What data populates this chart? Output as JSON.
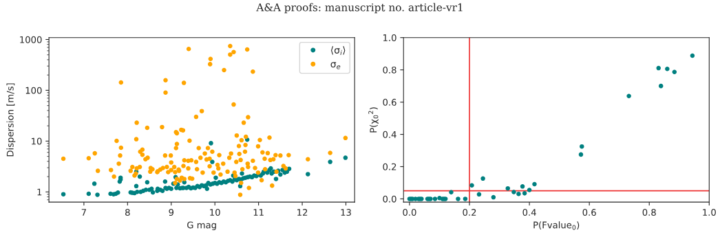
{
  "chart_data": [
    {
      "type": "scatter",
      "annotations": [
        "A&A proofs: manuscript no. article-vr1"
      ],
      "xlabel": "G mag",
      "ylabel": "Dispersion [m/s]",
      "log": "y",
      "xlim": [
        6.2,
        13.2
      ],
      "ylim": [
        0.63,
        1090
      ],
      "xticks": [
        7,
        8,
        9,
        10,
        11,
        12,
        13
      ],
      "yticks": [
        {
          "value": 1,
          "label": "1"
        },
        {
          "value": 10,
          "label": "10"
        },
        {
          "value": 100,
          "label": "100"
        },
        {
          "value": 1000,
          "label": "1000"
        }
      ],
      "grid": false,
      "legend": "top right",
      "marker": "circle",
      "series": [
        {
          "name": "⟨σ$_{i}$⟩",
          "color": "#008080",
          "x": [
            6.53,
            7.11,
            7.24,
            7.31,
            7.61,
            7.68,
            7.73,
            7.78,
            7.82,
            7.84,
            7.84,
            8.07,
            8.11,
            8.16,
            8.2,
            8.2,
            8.22,
            8.28,
            8.3,
            8.36,
            8.42,
            8.45,
            8.5,
            8.55,
            8.58,
            8.68,
            8.69,
            8.75,
            8.8,
            8.86,
            8.87,
            8.9,
            8.95,
            9.0,
            9.05,
            9.1,
            9.12,
            9.15,
            9.2,
            9.25,
            9.28,
            9.3,
            10.74,
            9.91,
            9.94,
            12.99,
            12.64,
            12.13,
            9.35,
            9.4,
            9.45,
            9.5,
            9.55,
            9.6,
            9.65,
            9.7,
            9.75,
            9.8,
            9.85,
            9.9,
            9.95,
            10.0,
            10.05,
            10.1,
            10.15,
            10.2,
            10.25,
            10.3,
            10.35,
            10.4,
            10.45,
            10.5,
            10.55,
            10.6,
            10.62,
            10.65,
            10.7,
            10.75,
            10.8,
            10.85,
            10.9,
            10.95,
            11.0,
            11.05,
            11.1,
            11.2,
            11.25,
            11.3,
            11.35,
            11.4,
            11.45,
            11.5,
            11.55,
            11.6,
            11.65,
            11.7,
            9.82,
            10.02,
            10.42,
            10.58,
            11.28,
            11.12
          ],
          "values": [
            0.9,
            0.92,
            1.45,
            0.88,
            0.92,
            0.9,
            0.92,
            0.97,
            1.6,
            1.9,
            1.75,
            0.98,
            0.96,
            0.95,
            1.3,
            2.5,
            1.0,
            2.0,
            1.0,
            1.05,
            1.1,
            1.55,
            1.1,
            1.15,
            0.98,
            1.05,
            1.15,
            1.1,
            1.05,
            1.6,
            1.2,
            1.15,
            1.2,
            1.15,
            1.45,
            1.95,
            1.2,
            1.4,
            1.18,
            1.2,
            1.2,
            1.55,
            10.7,
            9.1,
            3.9,
            4.7,
            3.9,
            2.24,
            1.2,
            1.25,
            1.18,
            1.22,
            1.2,
            1.3,
            1.25,
            1.35,
            1.3,
            1.35,
            1.5,
            1.4,
            1.45,
            1.5,
            1.45,
            1.55,
            1.5,
            1.6,
            1.55,
            1.65,
            1.7,
            1.6,
            1.75,
            1.7,
            1.8,
            1.75,
            2.3,
            1.85,
            1.9,
            1.95,
            2.0,
            1.95,
            2.1,
            2.05,
            2.2,
            2.1,
            2.3,
            2.4,
            2.7,
            2.3,
            2.5,
            1.8,
            2.6,
            2.2,
            2.7,
            2.4,
            2.5,
            2.85,
            1.15,
            1.9,
            2.1,
            1.3,
            2.9,
            2.5
          ]
        },
        {
          "name": "σ$_{e}$",
          "color": "#ffa500",
          "x": [
            6.53,
            7.11,
            7.25,
            7.32,
            7.62,
            7.69,
            7.75,
            7.8,
            7.83,
            7.85,
            7.85,
            8.07,
            8.11,
            8.16,
            8.19,
            8.2,
            8.21,
            8.21,
            8.28,
            8.29,
            8.34,
            8.34,
            8.41,
            8.46,
            8.45,
            8.52,
            8.53,
            8.57,
            8.68,
            8.69,
            8.75,
            8.79,
            8.81,
            8.86,
            8.87,
            8.87,
            8.9,
            8.93,
            8.99,
            9.0,
            9.0,
            9.07,
            9.09,
            9.11,
            9.13,
            9.13,
            9.11,
            9.13,
            9.09,
            9.17,
            9.18,
            9.2,
            9.23,
            9.27,
            9.29,
            9.28,
            9.3,
            9.24,
            9.3,
            9.4,
            9.9,
            9.89,
            10.35,
            10.43,
            10.35,
            10.74,
            10.21,
            10.87,
            9.7,
            9.57,
            10.43,
            10.76,
            10.66,
            10.5,
            10.71,
            10.61,
            11.03,
            11.25,
            9.42,
            12.99,
            10.7,
            10.55,
            10.99,
            9.63,
            9.84,
            9.94,
            10.37,
            10.1,
            10.56,
            10.69,
            11.09,
            11.21,
            11.39,
            11.5,
            11.69,
            12.64,
            12.13,
            9.77,
            9.67,
            9.39,
            9.46,
            9.57,
            9.81,
            9.88,
            10.06,
            10.19,
            10.33,
            10.49,
            10.59,
            10.75,
            10.87,
            11.14,
            11.34,
            11.27,
            11.57,
            11.62,
            9.39,
            9.59,
            9.88,
            10.08,
            10.29,
            10.45,
            10.63,
            10.76,
            10.92,
            11.15,
            11.41,
            9.72,
            9.97,
            9.43,
            9.48,
            10.6,
            11.07,
            11.31,
            10.78,
            10.58,
            10.13,
            10.47,
            10.99
          ],
          "values": [
            4.5,
            4.6,
            5.75,
            2.6,
            2.7,
            2.0,
            10.1,
            3.6,
            5.2,
            7.4,
            143,
            2.6,
            3.1,
            2.1,
            2.3,
            10.9,
            23,
            2.9,
            3.1,
            6.2,
            5.4,
            6.8,
            4.4,
            4.7,
            18.3,
            2.5,
            2.95,
            2.8,
            2.45,
            2.55,
            2.75,
            18.9,
            2.95,
            5.2,
            158,
            90,
            3.1,
            2.45,
            5.2,
            3.8,
            2.7,
            3.1,
            2.45,
            15,
            14.3,
            8.8,
            7.3,
            1.8,
            1.5,
            2.75,
            2.6,
            1.68,
            16.7,
            16.3,
            140,
            3.25,
            4.2,
            1.9,
            1.8,
            650,
            415,
            327,
            745,
            565,
            505,
            635,
            250,
            233,
            39,
            30,
            52.5,
            29.5,
            23,
            12.9,
            12.2,
            10.4,
            10.5,
            11.7,
            10.2,
            11.5,
            8.4,
            8.0,
            7.9,
            7.3,
            7.3,
            6.2,
            5.7,
            5.3,
            5.6,
            6.2,
            6.0,
            5.8,
            5.3,
            5.2,
            5.3,
            5.85,
            4.4,
            5.7,
            4.7,
            4.1,
            4.2,
            3.9,
            4.35,
            4.5,
            3.4,
            3.6,
            4.7,
            3.9,
            4.25,
            3.6,
            4.1,
            4.5,
            4.4,
            4.25,
            3.25,
            2.9,
            2.9,
            2.8,
            3.2,
            2.9,
            2.5,
            2.4,
            2.8,
            3.1,
            2.95,
            2.8,
            2.5,
            2.4,
            2.4,
            1.86,
            1.82,
            1.5,
            1.7,
            1.33,
            1.2,
            0.88,
            2.2,
            2.06,
            2.4
          ]
        }
      ]
    },
    {
      "type": "scatter",
      "xlabel": "P(Fvalue$_{0}$)",
      "ylabel": "P(χ$_{0}$$^{2}$)",
      "xlim": [
        -0.02,
        1.0
      ],
      "ylim": [
        -0.02,
        1.0
      ],
      "xticks": [
        {
          "value": 0,
          "label": "0.0"
        },
        0.2,
        0.4,
        0.6,
        0.8,
        {
          "value": 1,
          "label": "1.0"
        }
      ],
      "yticks": [
        {
          "value": 0,
          "label": "0.0"
        },
        0.2,
        0.4,
        0.6,
        0.8,
        {
          "value": 1,
          "label": "1.0"
        }
      ],
      "grid": false,
      "legend": false,
      "marker": "circle",
      "ref_lines": [
        {
          "axis": "x",
          "value": 0.2,
          "color": "#ee3333"
        },
        {
          "axis": "y",
          "value": 0.05,
          "color": "#ee3333"
        }
      ],
      "series": [
        {
          "color": "#008080",
          "x": [
            0.0,
            0.005,
            0.01,
            0.02,
            0.03,
            0.035,
            0.04,
            0.06,
            0.065,
            0.07,
            0.085,
            0.1,
            0.11,
            0.115,
            0.12,
            0.139,
            0.162,
            0.186,
            0.208,
            0.232,
            0.245,
            0.28,
            0.328,
            0.348,
            0.364,
            0.377,
            0.384,
            0.4,
            0.417,
            0.572,
            0.575,
            0.732,
            0.831,
            0.839,
            0.86,
            0.884,
            0.944
          ],
          "values": [
            0.0,
            0.0,
            0.0,
            0.0,
            0.0,
            0.0,
            0.0,
            0.0,
            0.0,
            0.0,
            0.0,
            0.005,
            0.0,
            0.0,
            0.0,
            0.041,
            0.0,
            0.0,
            0.084,
            0.028,
            0.126,
            0.01,
            0.065,
            0.042,
            0.031,
            0.077,
            0.035,
            0.055,
            0.091,
            0.275,
            0.325,
            0.638,
            0.811,
            0.7,
            0.806,
            0.787,
            0.888
          ]
        }
      ]
    }
  ]
}
